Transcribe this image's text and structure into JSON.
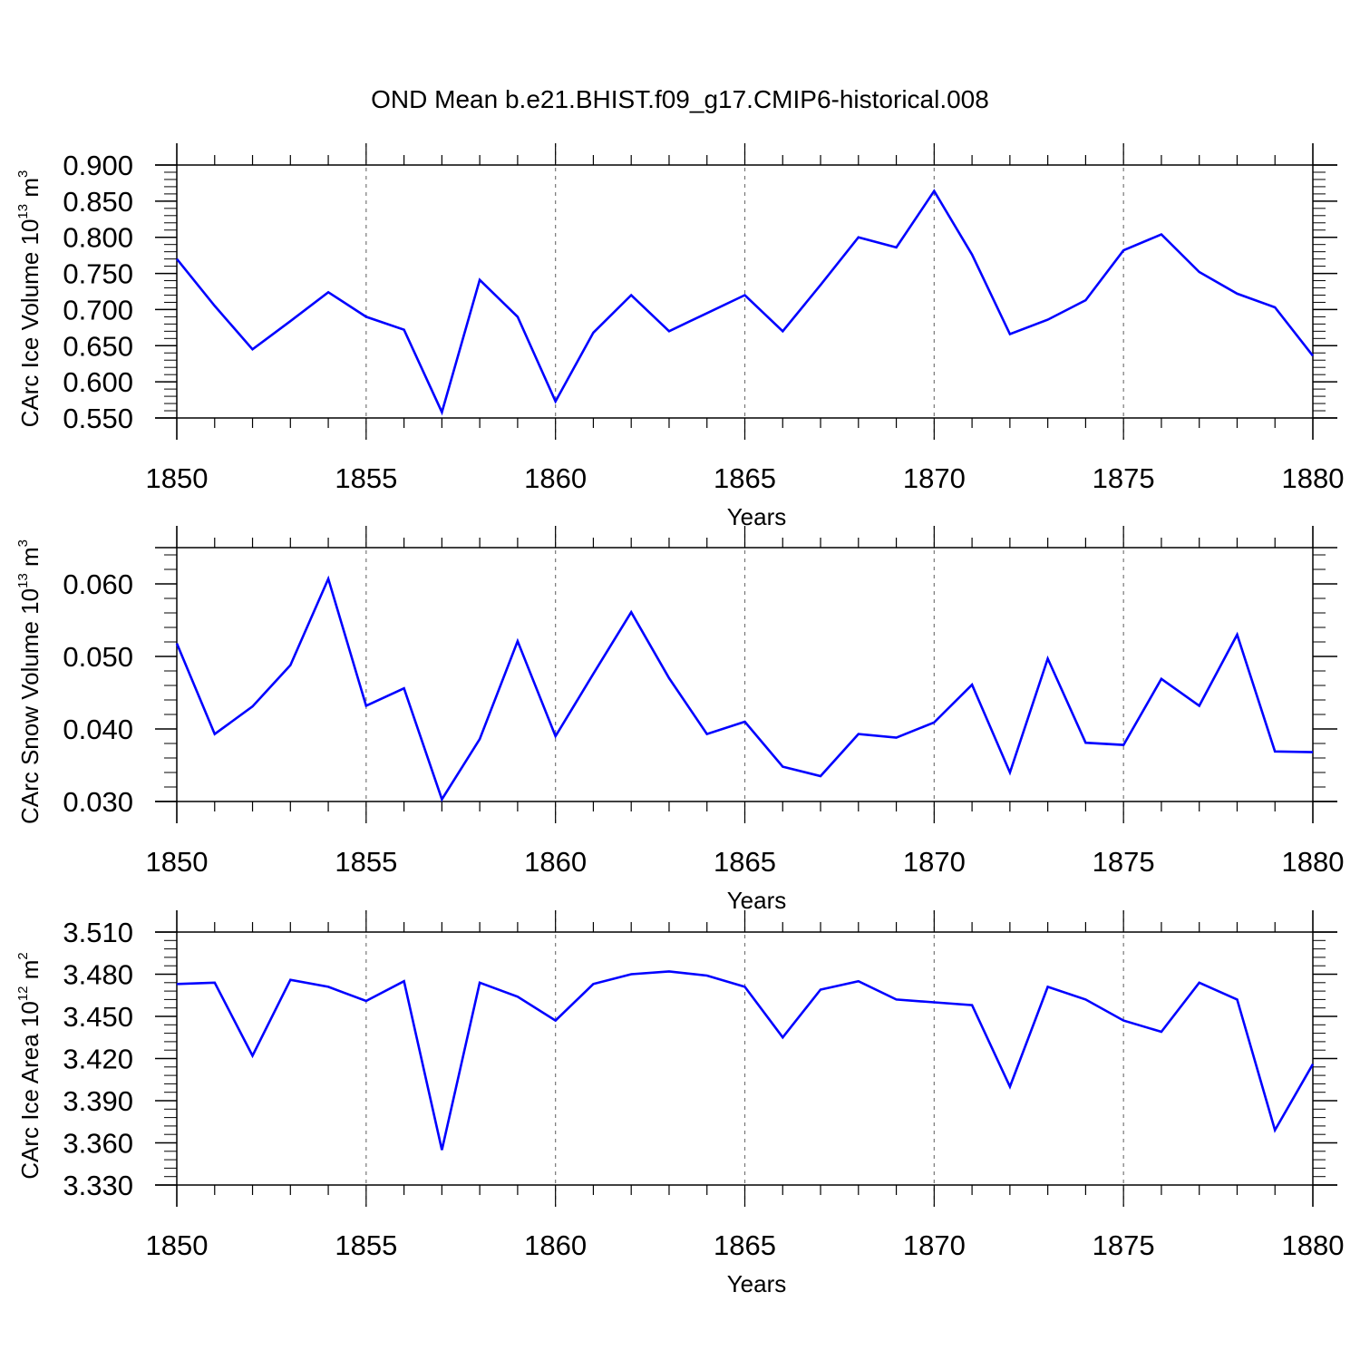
{
  "figure_title": "OND Mean b.e21.BHIST.f09_g17.CMIP6-historical.008",
  "line_color": "#0000ff",
  "chart_data": [
    {
      "type": "line",
      "title": "",
      "xlabel": "Years",
      "ylabel": "CArc Ice Volume 10",
      "ylabel_exp": "13",
      "ylabel_unit": " m",
      "ylabel_unit_exp": "3",
      "xlim": [
        1850,
        1880
      ],
      "ylim": [
        0.55,
        0.9
      ],
      "x_ticks": [
        1850,
        1855,
        1860,
        1865,
        1870,
        1875,
        1880
      ],
      "x_tick_labels": [
        "1850",
        "1855",
        "1860",
        "1865",
        "1870",
        "1875",
        "1880"
      ],
      "y_ticks": [
        0.55,
        0.6,
        0.65,
        0.7,
        0.75,
        0.8,
        0.85,
        0.9
      ],
      "y_tick_labels": [
        "0.550",
        "0.600",
        "0.650",
        "0.700",
        "0.750",
        "0.800",
        "0.850",
        "0.900"
      ],
      "x": [
        1850,
        1851,
        1852,
        1853,
        1854,
        1855,
        1856,
        1857,
        1858,
        1859,
        1860,
        1861,
        1862,
        1863,
        1864,
        1865,
        1866,
        1867,
        1868,
        1869,
        1870,
        1871,
        1872,
        1873,
        1874,
        1875,
        1876,
        1877,
        1878,
        1879,
        1880
      ],
      "series": [
        {
          "name": "CArc Ice Volume",
          "values": [
            0.77,
            0.705,
            0.645,
            0.684,
            0.724,
            0.69,
            0.672,
            0.558,
            0.741,
            0.69,
            0.573,
            0.668,
            0.72,
            0.67,
            0.695,
            0.72,
            0.67,
            0.734,
            0.8,
            0.786,
            0.864,
            0.776,
            0.666,
            0.686,
            0.713,
            0.782,
            0.804,
            0.752,
            0.722,
            0.703,
            0.636
          ]
        }
      ]
    },
    {
      "type": "line",
      "title": "",
      "xlabel": "Years",
      "ylabel": "CArc Snow Volume 10",
      "ylabel_exp": "13",
      "ylabel_unit": " m",
      "ylabel_unit_exp": "3",
      "xlim": [
        1850,
        1880
      ],
      "ylim": [
        0.03,
        0.065
      ],
      "x_ticks": [
        1850,
        1855,
        1860,
        1865,
        1870,
        1875,
        1880
      ],
      "x_tick_labels": [
        "1850",
        "1855",
        "1860",
        "1865",
        "1870",
        "1875",
        "1880"
      ],
      "y_ticks": [
        0.03,
        0.04,
        0.05,
        0.06
      ],
      "y_tick_labels": [
        "0.030",
        "0.040",
        "0.050",
        "0.060"
      ],
      "x": [
        1850,
        1851,
        1852,
        1853,
        1854,
        1855,
        1856,
        1857,
        1858,
        1859,
        1860,
        1861,
        1862,
        1863,
        1864,
        1865,
        1866,
        1867,
        1868,
        1869,
        1870,
        1871,
        1872,
        1873,
        1874,
        1875,
        1876,
        1877,
        1878,
        1879,
        1880
      ],
      "series": [
        {
          "name": "CArc Snow Volume",
          "values": [
            0.0518,
            0.0393,
            0.0431,
            0.0488,
            0.0607,
            0.0432,
            0.0456,
            0.0303,
            0.0386,
            0.0521,
            0.039,
            0.0476,
            0.0561,
            0.047,
            0.0393,
            0.041,
            0.0348,
            0.0335,
            0.0393,
            0.0388,
            0.0409,
            0.0461,
            0.034,
            0.0497,
            0.0381,
            0.0378,
            0.0469,
            0.0432,
            0.053,
            0.0369,
            0.0368
          ]
        }
      ]
    },
    {
      "type": "line",
      "title": "",
      "xlabel": "Years",
      "ylabel": "CArc Ice Area 10",
      "ylabel_exp": "12",
      "ylabel_unit": " m",
      "ylabel_unit_exp": "2",
      "xlim": [
        1850,
        1880
      ],
      "ylim": [
        3.33,
        3.51
      ],
      "x_ticks": [
        1850,
        1855,
        1860,
        1865,
        1870,
        1875,
        1880
      ],
      "x_tick_labels": [
        "1850",
        "1855",
        "1860",
        "1865",
        "1870",
        "1875",
        "1880"
      ],
      "y_ticks": [
        3.33,
        3.36,
        3.39,
        3.42,
        3.45,
        3.48,
        3.51
      ],
      "y_tick_labels": [
        "3.330",
        "3.360",
        "3.390",
        "3.420",
        "3.450",
        "3.480",
        "3.510"
      ],
      "x": [
        1850,
        1851,
        1852,
        1853,
        1854,
        1855,
        1856,
        1857,
        1858,
        1859,
        1860,
        1861,
        1862,
        1863,
        1864,
        1865,
        1866,
        1867,
        1868,
        1869,
        1870,
        1871,
        1872,
        1873,
        1874,
        1875,
        1876,
        1877,
        1878,
        1879,
        1880
      ],
      "series": [
        {
          "name": "CArc Ice Area",
          "values": [
            3.473,
            3.474,
            3.422,
            3.476,
            3.471,
            3.461,
            3.475,
            3.355,
            3.474,
            3.464,
            3.447,
            3.473,
            3.48,
            3.482,
            3.479,
            3.471,
            3.435,
            3.469,
            3.475,
            3.462,
            3.46,
            3.458,
            3.4,
            3.471,
            3.462,
            3.447,
            3.439,
            3.474,
            3.462,
            3.369,
            3.416
          ]
        }
      ]
    }
  ]
}
